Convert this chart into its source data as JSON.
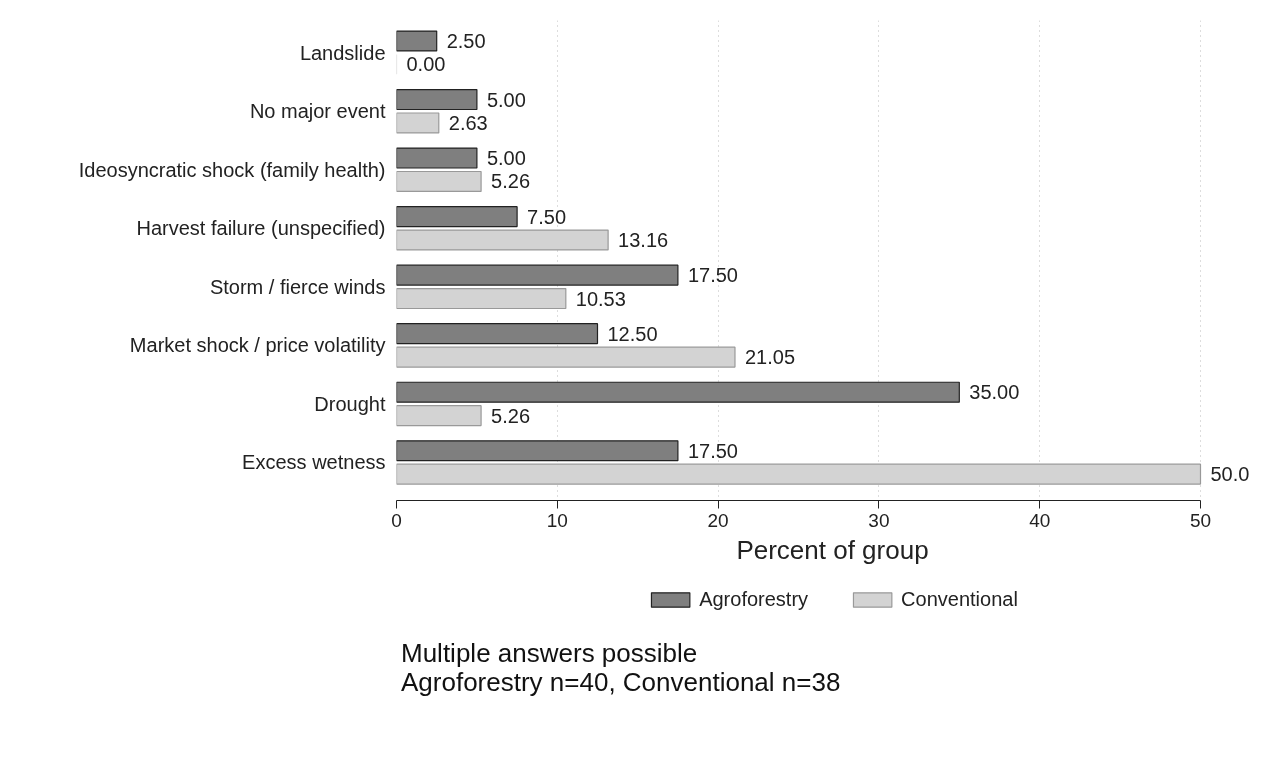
{
  "chart_data": {
    "type": "bar",
    "orientation": "horizontal",
    "categories": [
      "Landslide",
      "No major event",
      "Ideosyncratic shock (family health)",
      "Harvest failure (unspecified)",
      "Storm / fierce winds",
      "Market shock / price volatility",
      "Drought",
      "Excess wetness"
    ],
    "series": [
      {
        "name": "Agroforestry",
        "color": "#7f7f7f",
        "values": [
          2.5,
          5,
          5,
          7.5,
          17.5,
          12.5,
          35,
          17.5
        ],
        "value_labels": [
          "2.50",
          "5.00",
          "5.00",
          "7.50",
          "17.50",
          "12.50",
          "35.00",
          "17.50"
        ]
      },
      {
        "name": "Conventional",
        "color": "#d3d3d3",
        "values": [
          0,
          2.63,
          5.26,
          13.16,
          10.53,
          21.05,
          5.26,
          50
        ],
        "value_labels": [
          "0.00",
          "2.63",
          "5.26",
          "13.16",
          "10.53",
          "21.05",
          "5.26",
          "50.0"
        ]
      }
    ],
    "xlim": [
      0,
      50
    ],
    "xticks": [
      0,
      10,
      20,
      30,
      40,
      50
    ],
    "xlabel": "Percent of group",
    "grid": "x",
    "legend": "bottom",
    "annotations": [
      "Multiple answers possible",
      "Agroforestry n=40, Conventional n=38"
    ]
  }
}
